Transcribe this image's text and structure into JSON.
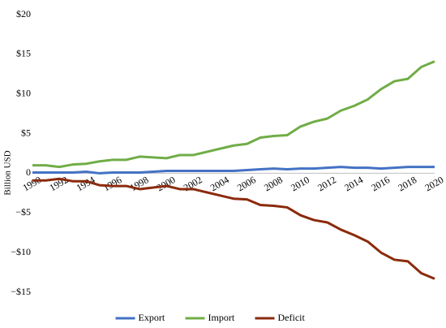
{
  "chart_data": {
    "type": "line",
    "y_label": "Billion USD",
    "x": [
      1990,
      1991,
      1992,
      1993,
      1994,
      1995,
      1996,
      1997,
      1998,
      1999,
      2000,
      2001,
      2002,
      2003,
      2004,
      2005,
      2006,
      2007,
      2008,
      2009,
      2010,
      2011,
      2012,
      2013,
      2014,
      2015,
      2016,
      2017,
      2018,
      2019,
      2020
    ],
    "xlim": [
      1990,
      2020
    ],
    "xticks": [
      1990,
      1992,
      1994,
      1996,
      1998,
      2000,
      2002,
      2004,
      2006,
      2008,
      2010,
      2012,
      2014,
      2016,
      2018,
      2020
    ],
    "ylim": [
      -15,
      20
    ],
    "yticks": [
      {
        "value": -15,
        "label": "−$15"
      },
      {
        "value": -10,
        "label": "−$10"
      },
      {
        "value": -5,
        "label": "−$5"
      },
      0,
      {
        "value": 5,
        "label": "$5"
      },
      {
        "value": 10,
        "label": "$10"
      },
      {
        "value": 15,
        "label": "$15"
      },
      {
        "value": 20,
        "label": "$20"
      }
    ],
    "grid": false,
    "legend": "bottom",
    "series": [
      {
        "name": "Export",
        "color": "#4472c4",
        "values": [
          0.1,
          0.1,
          0.1,
          0.1,
          0.2,
          0.0,
          0.1,
          0.1,
          0.1,
          0.2,
          0.3,
          0.3,
          0.3,
          0.3,
          0.3,
          0.3,
          0.4,
          0.5,
          0.6,
          0.5,
          0.6,
          0.6,
          0.7,
          0.8,
          0.7,
          0.7,
          0.6,
          0.7,
          0.8,
          0.8,
          0.8
        ]
      },
      {
        "name": "Import",
        "color": "#70ad47",
        "values": [
          1.0,
          1.0,
          0.8,
          1.1,
          1.2,
          1.5,
          1.7,
          1.7,
          2.1,
          2.0,
          1.9,
          2.3,
          2.3,
          2.7,
          3.1,
          3.5,
          3.7,
          4.5,
          4.7,
          4.8,
          5.9,
          6.5,
          6.9,
          7.9,
          8.5,
          9.3,
          10.6,
          11.6,
          11.9,
          13.4,
          14.1
        ]
      },
      {
        "name": "Deficit",
        "color": "#8b2a0c",
        "values": [
          -0.9,
          -0.9,
          -0.7,
          -1.0,
          -1.0,
          -1.5,
          -1.6,
          -1.6,
          -2.0,
          -1.8,
          -1.6,
          -2.0,
          -2.0,
          -2.4,
          -2.8,
          -3.2,
          -3.3,
          -4.0,
          -4.1,
          -4.3,
          -5.3,
          -5.9,
          -6.2,
          -7.1,
          -7.8,
          -8.6,
          -10.0,
          -10.9,
          -11.1,
          -12.6,
          -13.3
        ]
      }
    ]
  }
}
